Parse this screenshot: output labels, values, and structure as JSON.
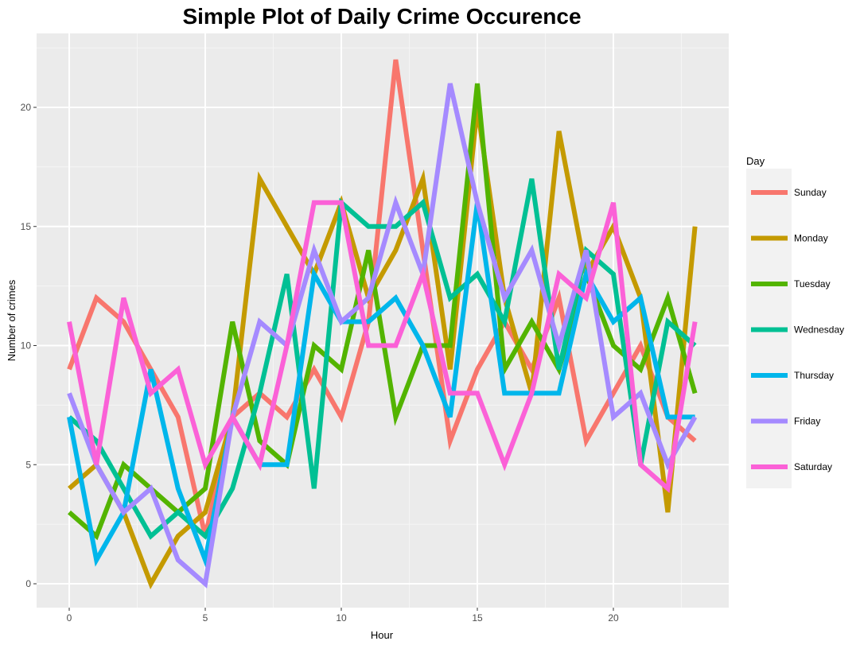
{
  "chart_data": {
    "type": "line",
    "title": "Simple Plot of Daily Crime Occurence",
    "xlabel": "Hour",
    "ylabel": "Number of crimes",
    "xlim": [
      -2,
      24
    ],
    "ylim": [
      -1,
      22.5
    ],
    "x_ticks": [
      0,
      5,
      10,
      15,
      20
    ],
    "y_ticks": [
      0,
      5,
      10,
      15,
      20
    ],
    "grid": true,
    "legend_title": "Day",
    "legend_position": "right",
    "x": [
      0,
      1,
      2,
      3,
      4,
      5,
      6,
      7,
      8,
      9,
      10,
      11,
      12,
      13,
      14,
      15,
      16,
      17,
      18,
      19,
      20,
      21,
      22,
      23
    ],
    "series": [
      {
        "name": "Sunday",
        "color": "#F8766D",
        "values": [
          9,
          12,
          11,
          9,
          7,
          2,
          7,
          8,
          7,
          9,
          7,
          11,
          22,
          14,
          6,
          9,
          11,
          9,
          12,
          6,
          8,
          10,
          7,
          6
        ]
      },
      {
        "name": "Monday",
        "color": "#C49A00",
        "values": [
          4,
          5,
          3,
          0,
          2,
          3,
          7,
          17,
          15,
          13,
          16,
          12,
          14,
          17,
          9,
          20,
          12,
          8,
          19,
          13,
          15,
          12,
          3,
          15
        ]
      },
      {
        "name": "Tuesday",
        "color": "#53B400",
        "values": [
          3,
          2,
          5,
          4,
          3,
          4,
          11,
          6,
          5,
          10,
          9,
          14,
          7,
          10,
          10,
          21,
          9,
          11,
          9,
          13,
          10,
          9,
          12,
          8
        ]
      },
      {
        "name": "Wednesday",
        "color": "#00C094",
        "values": [
          7,
          6,
          4,
          2,
          3,
          2,
          4,
          8,
          13,
          4,
          16,
          15,
          15,
          16,
          12,
          13,
          11,
          17,
          9,
          14,
          13,
          5,
          11,
          10
        ]
      },
      {
        "name": "Thursday",
        "color": "#00B6EB",
        "values": [
          7,
          1,
          3,
          9,
          4,
          1,
          7,
          5,
          5,
          13,
          11,
          11,
          12,
          10,
          7,
          16,
          8,
          8,
          8,
          13,
          11,
          12,
          7,
          7
        ]
      },
      {
        "name": "Friday",
        "color": "#A58AFF",
        "values": [
          8,
          5,
          3,
          4,
          1,
          0,
          7,
          11,
          10,
          14,
          11,
          12,
          16,
          13,
          21,
          16,
          12,
          14,
          10,
          14,
          7,
          8,
          5,
          7
        ]
      },
      {
        "name": "Saturday",
        "color": "#FB61D7",
        "values": [
          11,
          5,
          12,
          8,
          9,
          5,
          7,
          5,
          10,
          16,
          16,
          10,
          10,
          13,
          8,
          8,
          5,
          8,
          13,
          12,
          16,
          5,
          4,
          11
        ]
      }
    ]
  }
}
